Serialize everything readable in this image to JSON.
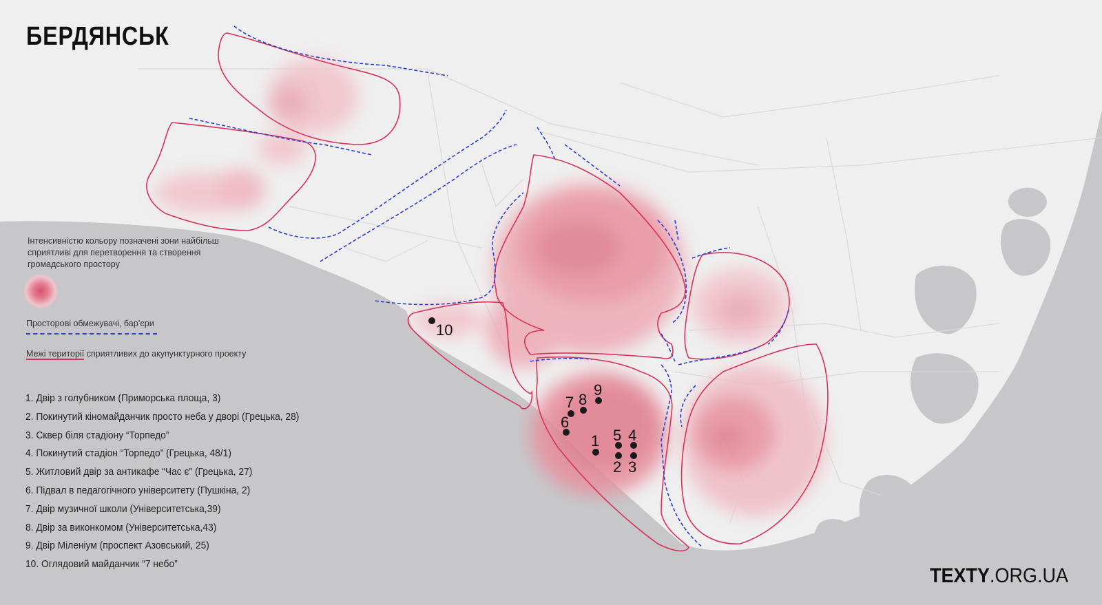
{
  "title": "БЕРДЯНСЬК",
  "legend": {
    "intensity_text": "Інтенсивністю кольору позначені зони найбільш сприятливі для перетворення та створення громадського простору",
    "barrier_text": "Просторові обмежувачі, бар’єри",
    "border_text": "Межі території сприятливих до акупунктурного проекту",
    "barrier_color": "#2a3fd1",
    "border_color": "#d6335a",
    "heat_color": "#d9506e"
  },
  "places": [
    "1. Двір з голубником (Приморська площа, 3)",
    "2. Покинутий кіномайданчик просто неба у дворі (Грецька, 28)",
    "3. Сквер біля стадіону “Торпедо”",
    "4. Покинутий стадіон “Торпедо” (Грецька, 48/1)",
    "5. Житловий двір за антикафе “Час є” (Грецька, 27)",
    "6. Підвал в педагогічного університету (Пушкіна, 2)",
    "7. Двір музичної школи (Університетська,39)",
    "8. Двір за виконкомом (Університетська,43)",
    "9. Двір Міленіум (проспект Азовський, 25)",
    "10. Оглядовий майданчик “7 небо”"
  ],
  "markers": [
    "1",
    "2",
    "3",
    "4",
    "5",
    "6",
    "7",
    "8",
    "9",
    "10"
  ],
  "logo": {
    "bold": "TEXTY",
    "rest": ".ORG.UA"
  },
  "colors": {
    "sea": "#c7c7c9",
    "land": "#efefef"
  }
}
